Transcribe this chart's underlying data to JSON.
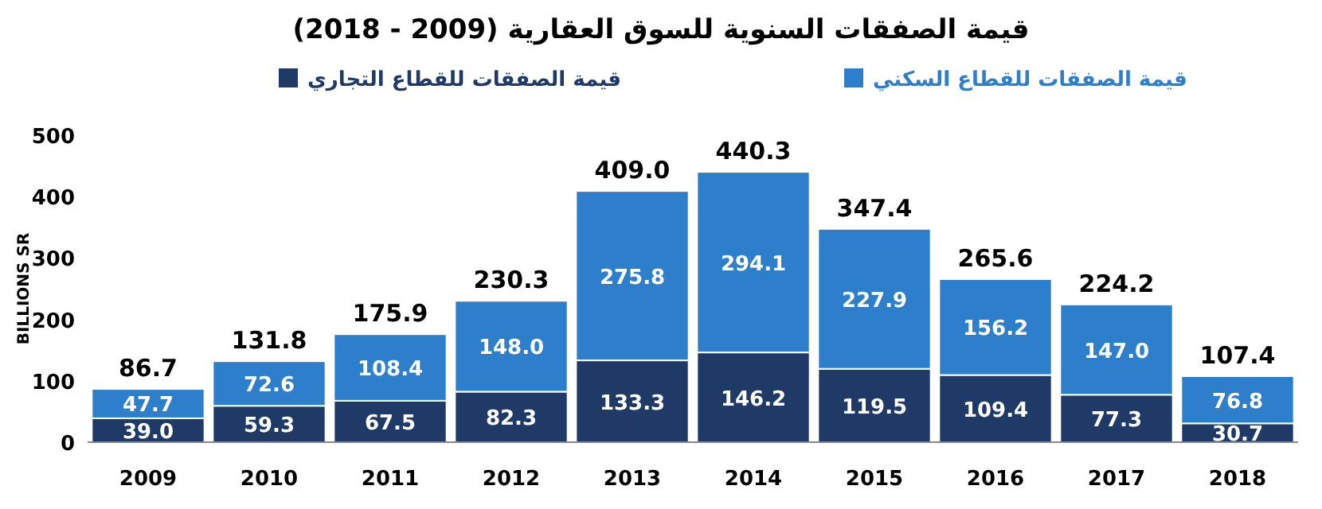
{
  "chart_data": {
    "type": "bar",
    "stacked": true,
    "title": "قيمة الصفقات السنوية للسوق العقارية (2009 - 2018)",
    "ylabel": "BILLIONS SR",
    "categories": [
      "2009",
      "2010",
      "2011",
      "2012",
      "2013",
      "2014",
      "2015",
      "2016",
      "2017",
      "2018"
    ],
    "series": [
      {
        "name": "قيمة الصفقات للقطاع التجاري",
        "color": "#203a68",
        "values": [
          39.0,
          59.3,
          67.5,
          82.3,
          133.3,
          146.2,
          119.5,
          109.4,
          77.3,
          30.7
        ],
        "value_labels": [
          "39.0",
          "59.3",
          "67.5",
          "82.3",
          "133.3",
          "146.2",
          "119.5",
          "109.4",
          "77.3",
          "30.7"
        ]
      },
      {
        "name": "قيمة الصفقات للقطاع السكني",
        "color": "#2e7fcb",
        "values": [
          47.7,
          72.6,
          108.4,
          148.0,
          275.8,
          294.1,
          227.9,
          156.2,
          147.0,
          76.8
        ],
        "value_labels": [
          "47.7",
          "72.6",
          "108.4",
          "148.0",
          "275.8",
          "294.1",
          "227.9",
          "156.2",
          "147.0",
          "76.8"
        ]
      }
    ],
    "totals": [
      "86.7",
      "131.8",
      "175.9",
      "230.3",
      "409.0",
      "440.3",
      "347.4",
      "265.6",
      "224.2",
      "107.4"
    ],
    "ylim": [
      0,
      500
    ],
    "yticks": [
      0,
      100,
      200,
      300,
      400,
      500
    ],
    "grid": false,
    "legend": "top"
  }
}
